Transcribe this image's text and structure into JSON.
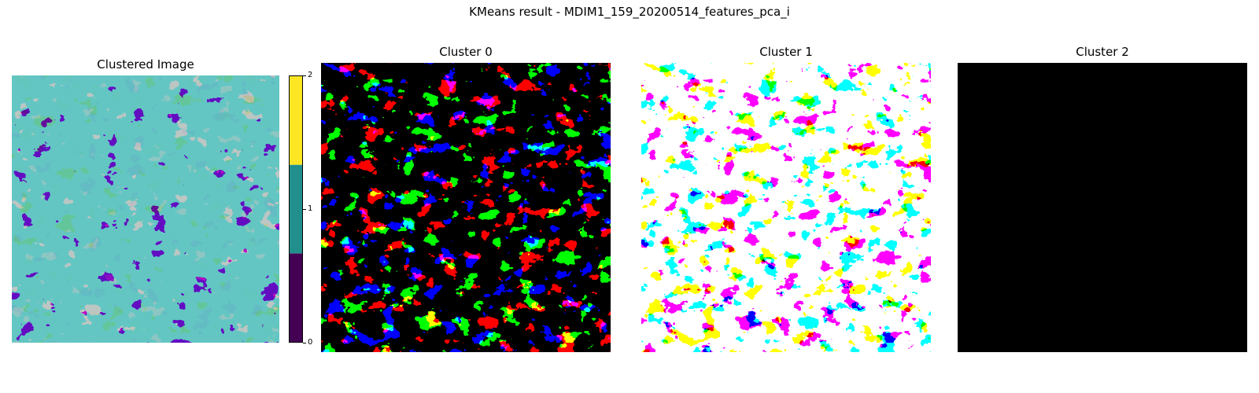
{
  "figure": {
    "title": "KMeans result - MDIM1_159_20200514_features_pca_i"
  },
  "chart_data": [
    {
      "type": "heatmap",
      "title": "Clustered Image",
      "colormap": [
        "#440154",
        "#21908c",
        "#fde725"
      ],
      "mask_color": "#808080",
      "axes": "off",
      "colorbar": {
        "ticks": [
          "0",
          "1",
          "2"
        ],
        "min": 0,
        "max": 2
      }
    },
    {
      "type": "heatmap",
      "title": "Cluster 0",
      "colors": [
        "#000000",
        "#ffffff"
      ],
      "axes": "off"
    },
    {
      "type": "heatmap",
      "title": "Cluster 1",
      "colors": [
        "#000000",
        "#ffffff"
      ],
      "axes": "off"
    },
    {
      "type": "heatmap",
      "title": "Cluster 2",
      "colors": [
        "#000000"
      ],
      "axes": "off"
    }
  ]
}
